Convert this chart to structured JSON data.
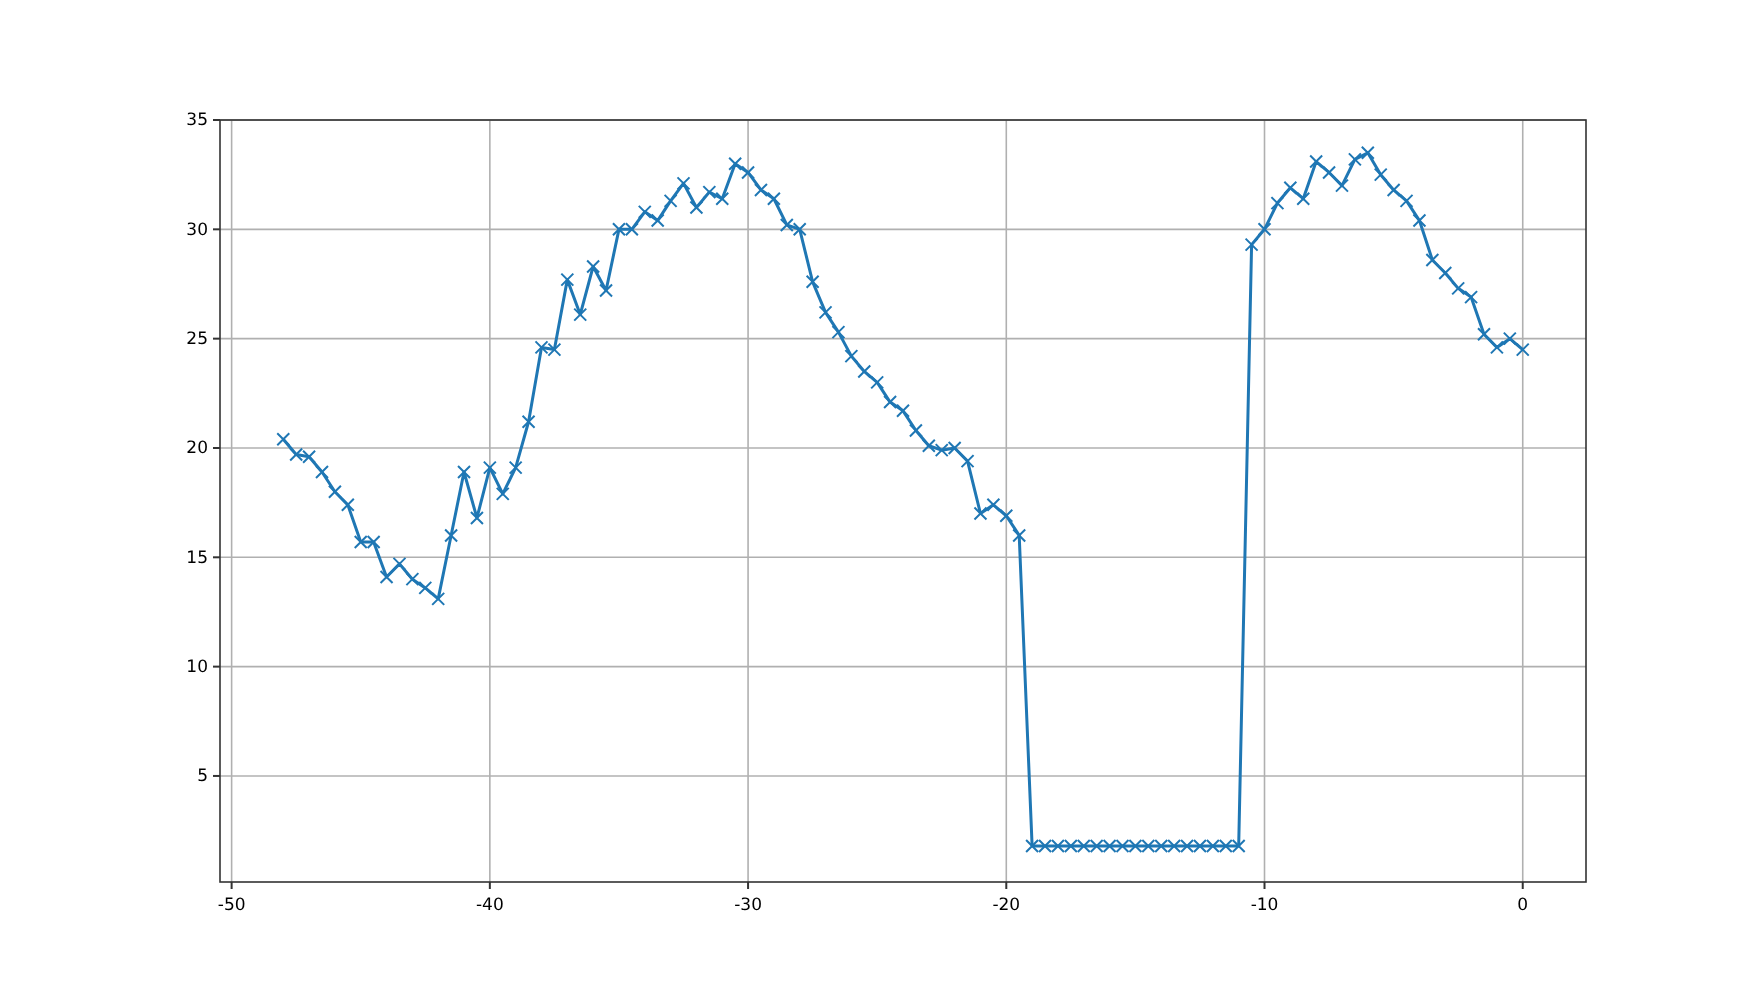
{
  "chart_data": {
    "type": "line",
    "xlim": [
      -50.45,
      2.45
    ],
    "ylim": [
      0.15,
      35
    ],
    "xticks": [
      -50,
      -40,
      -30,
      -20,
      -10,
      0
    ],
    "yticks": [
      5,
      10,
      15,
      20,
      25,
      30,
      35
    ],
    "grid": true,
    "marker": "cross",
    "line_style": "solid",
    "x": [
      -48,
      -47.5,
      -47,
      -46.5,
      -46,
      -45.5,
      -45,
      -44.5,
      -44,
      -43.5,
      -43,
      -42.5,
      -42,
      -41.5,
      -41,
      -40.5,
      -40,
      -39.5,
      -39,
      -38.5,
      -38,
      -37.5,
      -37,
      -36.5,
      -36,
      -35.5,
      -35,
      -34.5,
      -34,
      -33.5,
      -33,
      -32.5,
      -32,
      -31.5,
      -31,
      -30.5,
      -30,
      -29.5,
      -29,
      -28.5,
      -28,
      -27.5,
      -27,
      -26.5,
      -26,
      -25.5,
      -25,
      -24.5,
      -24,
      -23.5,
      -23,
      -22.5,
      -22,
      -21.5,
      -21,
      -20.5,
      -20,
      -19.5,
      -19,
      -18.5,
      -18,
      -17.5,
      -17,
      -16.5,
      -16,
      -15.5,
      -15,
      -14.5,
      -14,
      -13.5,
      -13,
      -12.5,
      -12,
      -11.5,
      -11,
      -10.5,
      -10,
      -9.5,
      -9,
      -8.5,
      -8,
      -7.5,
      -7,
      -6.5,
      -6,
      -5.5,
      -5,
      -4.5,
      -4,
      -3.5,
      -3,
      -2.5,
      -2,
      -1.5,
      -1,
      -0.5,
      0
    ],
    "series": [
      {
        "color": "#1f77b4",
        "values": [
          20.4,
          19.7,
          19.6,
          18.9,
          18.0,
          17.4,
          15.7,
          15.7,
          14.1,
          14.7,
          14.0,
          13.6,
          13.1,
          16.0,
          18.9,
          16.8,
          19.1,
          17.9,
          19.1,
          21.2,
          24.6,
          24.5,
          27.7,
          26.1,
          28.3,
          27.2,
          30.0,
          30.0,
          30.8,
          30.4,
          31.3,
          32.1,
          31.0,
          31.7,
          31.4,
          33.0,
          32.6,
          31.8,
          31.4,
          30.2,
          30.0,
          27.6,
          26.2,
          25.3,
          24.2,
          23.5,
          23.0,
          22.1,
          21.7,
          20.8,
          20.1,
          19.9,
          20.0,
          19.4,
          17.0,
          17.4,
          16.9,
          16.0,
          1.8,
          1.8,
          1.8,
          1.8,
          1.8,
          1.8,
          1.8,
          1.8,
          1.8,
          1.8,
          1.8,
          1.8,
          1.8,
          1.8,
          1.8,
          1.8,
          1.8,
          29.3,
          30.0,
          31.2,
          31.9,
          31.4,
          33.1,
          32.6,
          32.0,
          33.2,
          33.5,
          32.5,
          31.8,
          31.3,
          30.4,
          28.6,
          28.0,
          27.3,
          26.9,
          25.2,
          24.6,
          25.0,
          24.5
        ]
      }
    ]
  }
}
